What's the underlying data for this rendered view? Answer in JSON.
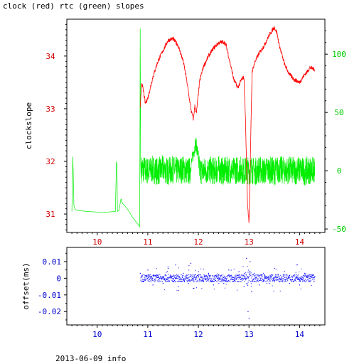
{
  "title": "clock (red) rtc (green) slopes",
  "footer": "2013-06-09 info",
  "colors": {
    "clock": "#ff0000",
    "rtc": "#00ee00",
    "offset": "#0000ff",
    "axis": "#000000"
  },
  "chart_data": [
    {
      "type": "line",
      "title": "clock (red) rtc (green) slopes",
      "xlabel": "",
      "ylabel": "clockslope",
      "xlim": [
        9.4,
        14.5
      ],
      "ylim": [
        30.65,
        34.7
      ],
      "y2lim": [
        -53,
        130
      ],
      "x_ticks": [
        10,
        11,
        12,
        13,
        14
      ],
      "y_ticks": [
        31,
        32,
        33,
        34
      ],
      "y2_ticks": [
        -50,
        0,
        50,
        100
      ],
      "grid": false,
      "series": [
        {
          "name": "clock",
          "axis": "left",
          "color": "#ff0000",
          "x": [
            10.85,
            10.88,
            10.92,
            10.95,
            11.0,
            11.1,
            11.2,
            11.3,
            11.4,
            11.5,
            11.6,
            11.7,
            11.76,
            11.82,
            11.86,
            11.9,
            11.93,
            11.96,
            12.0,
            12.03,
            12.1,
            12.2,
            12.3,
            12.4,
            12.5,
            12.55,
            12.62,
            12.7,
            12.78,
            12.85,
            12.9,
            12.93,
            12.97,
            13.0,
            13.03,
            13.06,
            13.12,
            13.2,
            13.3,
            13.4,
            13.5,
            13.55,
            13.6,
            13.7,
            13.8,
            13.9,
            14.0,
            14.1,
            14.15,
            14.2,
            14.3
          ],
          "y": [
            33.0,
            33.5,
            33.3,
            33.1,
            33.2,
            33.6,
            33.9,
            34.1,
            34.3,
            34.33,
            34.2,
            33.9,
            33.6,
            33.2,
            32.95,
            32.8,
            33.05,
            32.9,
            33.3,
            33.55,
            33.8,
            34.0,
            34.15,
            34.25,
            34.27,
            34.2,
            33.9,
            33.55,
            33.4,
            33.55,
            33.6,
            32.8,
            31.2,
            30.85,
            32.2,
            33.7,
            33.9,
            34.05,
            34.2,
            34.4,
            34.55,
            34.45,
            34.2,
            33.85,
            33.65,
            33.55,
            33.5,
            33.65,
            33.7,
            33.78,
            33.75
          ]
        },
        {
          "name": "rtc",
          "axis": "right",
          "color": "#00ee00",
          "x": [
            9.5,
            9.52,
            9.54,
            9.56,
            9.6,
            9.8,
            10.0,
            10.2,
            10.36,
            10.38,
            10.39,
            10.4,
            10.43,
            10.47,
            10.5,
            10.6,
            10.7,
            10.84,
            10.85,
            10.86,
            10.9,
            11.0,
            11.1,
            11.2,
            11.3,
            11.4,
            11.5,
            11.6,
            11.7,
            11.8,
            11.85,
            11.9,
            11.95,
            12.0,
            12.03,
            12.1,
            12.2,
            12.3,
            12.4,
            12.5,
            12.6,
            12.7,
            12.8,
            12.9,
            12.95,
            13.0,
            13.05,
            13.1,
            13.2,
            13.3,
            13.4,
            13.5,
            13.6,
            13.7,
            13.8,
            13.9,
            14.0,
            14.1,
            14.2,
            14.3
          ],
          "y": [
            -35,
            12,
            -30,
            -33,
            -34,
            -35,
            -35.5,
            -35.5,
            -35,
            8,
            5,
            -35,
            -34,
            -24,
            -28,
            -33,
            -40,
            -48,
            122,
            5,
            10,
            -2,
            8,
            -5,
            12,
            -4,
            7,
            -3,
            9,
            -6,
            5,
            18,
            30,
            15,
            2,
            -4,
            6,
            -3,
            8,
            -5,
            4,
            -2,
            10,
            -4,
            5,
            0,
            8,
            -6,
            7,
            -2,
            5,
            -4,
            8,
            -3,
            4,
            -2,
            6,
            -5,
            3,
            0
          ]
        }
      ]
    },
    {
      "type": "scatter",
      "title": "",
      "xlabel": "",
      "ylabel": "offset(ms)",
      "xlim": [
        9.4,
        14.5
      ],
      "ylim": [
        -0.028,
        0.0185
      ],
      "x_ticks": [
        10,
        11,
        12,
        13,
        14
      ],
      "y_ticks": [
        -0.02,
        -0.01,
        0,
        0.01
      ],
      "y_tick_labels": [
        "-0.02",
        "-0.01",
        "0",
        "0.01"
      ],
      "grid": false,
      "series": [
        {
          "name": "offset",
          "color": "#0000ff",
          "x": [
            10.85,
            10.9,
            11.0,
            11.1,
            11.2,
            11.3,
            11.4,
            11.5,
            11.55,
            11.6,
            11.7,
            11.8,
            11.85,
            11.9,
            12.0,
            12.1,
            12.2,
            12.3,
            12.4,
            12.5,
            12.6,
            12.7,
            12.8,
            12.9,
            12.95,
            12.98,
            13.0,
            13.02,
            13.05,
            13.1,
            13.2,
            13.3,
            13.4,
            13.5,
            13.6,
            13.7,
            13.8,
            13.9,
            14.0,
            14.1,
            14.2,
            14.3
          ],
          "y": [
            0.003,
            -0.002,
            0.005,
            -0.004,
            0.002,
            -0.003,
            0.006,
            -0.002,
            0.008,
            -0.005,
            0.003,
            -0.003,
            0.009,
            -0.006,
            0.004,
            -0.002,
            0.003,
            -0.004,
            0.002,
            -0.003,
            0.005,
            -0.002,
            0.004,
            -0.005,
            0.012,
            -0.02,
            -0.024,
            0.01,
            -0.008,
            0.003,
            -0.004,
            0.002,
            -0.003,
            0.006,
            -0.002,
            0.004,
            -0.003,
            0.002,
            -0.004,
            0.003,
            -0.002,
            0.001
          ]
        }
      ]
    }
  ]
}
